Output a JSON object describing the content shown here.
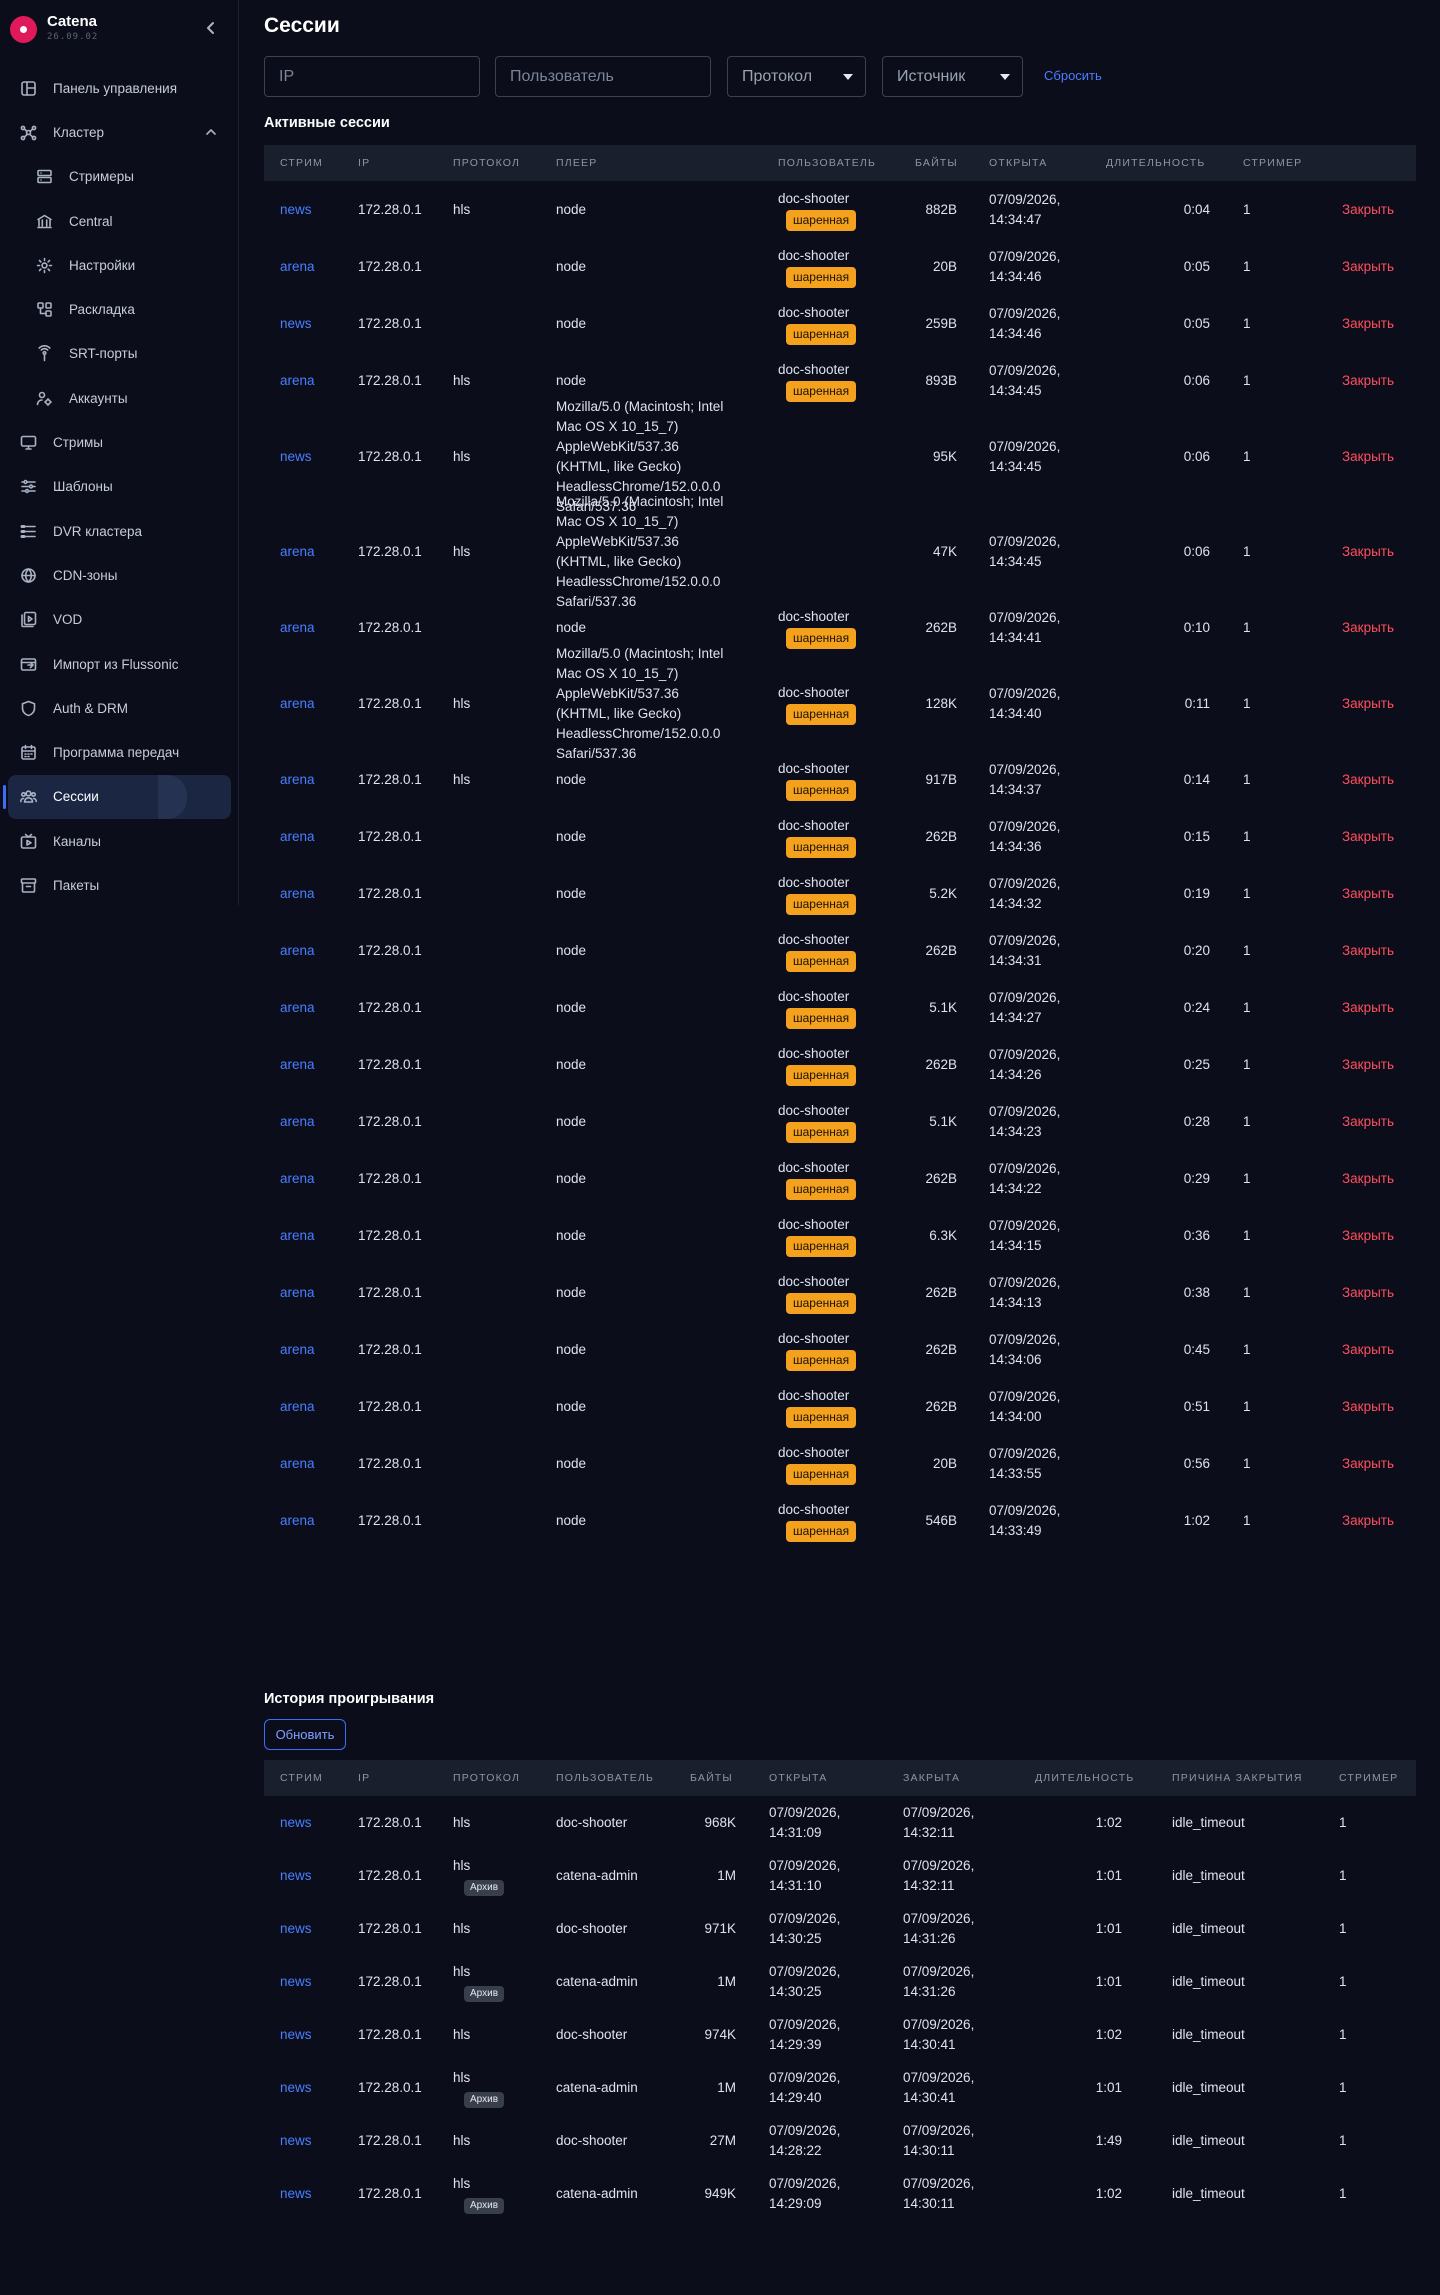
{
  "app": {
    "name": "Catena",
    "version": "26.09.02"
  },
  "sidebar": {
    "items": [
      {
        "label": "Панель управления",
        "icon": "dashboard-icon",
        "sub": false
      },
      {
        "label": "Кластер",
        "icon": "cluster-icon",
        "sub": false,
        "expanded": true
      },
      {
        "label": "Стримеры",
        "icon": "server-icon",
        "sub": true
      },
      {
        "label": "Central",
        "icon": "bank-icon",
        "sub": true
      },
      {
        "label": "Настройки",
        "icon": "gear-icon",
        "sub": true
      },
      {
        "label": "Раскладка",
        "icon": "layout-icon",
        "sub": true
      },
      {
        "label": "SRT-порты",
        "icon": "broadcast-icon",
        "sub": true
      },
      {
        "label": "Аккаунты",
        "icon": "accounts-icon",
        "sub": true
      },
      {
        "label": "Стримы",
        "icon": "monitor-icon",
        "sub": false
      },
      {
        "label": "Шаблоны",
        "icon": "sliders-icon",
        "sub": false
      },
      {
        "label": "DVR кластера",
        "icon": "list-icon",
        "sub": false
      },
      {
        "label": "CDN-зоны",
        "icon": "globe-icon",
        "sub": false
      },
      {
        "label": "VOD",
        "icon": "video-file-icon",
        "sub": false
      },
      {
        "label": "Импорт из Flussonic",
        "icon": "import-icon",
        "sub": false
      },
      {
        "label": "Auth & DRM",
        "icon": "shield-icon",
        "sub": false
      },
      {
        "label": "Программа передач",
        "icon": "calendar-icon",
        "sub": false
      },
      {
        "label": "Сессии",
        "icon": "users-icon",
        "sub": false,
        "active": true
      },
      {
        "label": "Каналы",
        "icon": "tv-icon",
        "sub": false
      },
      {
        "label": "Пакеты",
        "icon": "archive-box-icon",
        "sub": false
      }
    ]
  },
  "page": {
    "title": "Сессии"
  },
  "filters": {
    "ip_placeholder": "IP",
    "user_placeholder": "Пользователь",
    "protocol_label": "Протокол",
    "source_label": "Источник",
    "reset_label": "Сбросить"
  },
  "active": {
    "title": "Активные сессии",
    "columns": [
      "Стрим",
      "IP",
      "Протокол",
      "Плеер",
      "Пользователь",
      "Байты",
      "Открыта",
      "Длительность",
      "Стример",
      ""
    ],
    "close_label": "Закрыть",
    "shared_label": "шаренная",
    "rows": [
      {
        "stream": "news",
        "ip": "172.28.0.1",
        "proto": "hls",
        "player": [
          "node"
        ],
        "user": "doc-shooter",
        "shared": true,
        "bytes": "882B",
        "opened": [
          "07/09/2026,",
          "14:34:47"
        ],
        "duration": "0:04",
        "streamer": "1"
      },
      {
        "stream": "arena",
        "ip": "172.28.0.1",
        "proto": "",
        "player": [
          "node"
        ],
        "user": "doc-shooter",
        "shared": true,
        "bytes": "20B",
        "opened": [
          "07/09/2026,",
          "14:34:46"
        ],
        "duration": "0:05",
        "streamer": "1"
      },
      {
        "stream": "news",
        "ip": "172.28.0.1",
        "proto": "",
        "player": [
          "node"
        ],
        "user": "doc-shooter",
        "shared": true,
        "bytes": "259B",
        "opened": [
          "07/09/2026,",
          "14:34:46"
        ],
        "duration": "0:05",
        "streamer": "1"
      },
      {
        "stream": "arena",
        "ip": "172.28.0.1",
        "proto": "hls",
        "player": [
          "node"
        ],
        "user": "doc-shooter",
        "shared": true,
        "bytes": "893B",
        "opened": [
          "07/09/2026,",
          "14:34:45"
        ],
        "duration": "0:06",
        "streamer": "1"
      },
      {
        "stream": "news",
        "ip": "172.28.0.1",
        "proto": "hls",
        "player": [
          "Mozilla/5.0 (Macintosh; Intel",
          "Mac OS X 10_15_7)",
          "AppleWebKit/537.36",
          "(KHTML, like Gecko)",
          "HeadlessChrome/152.0.0.0",
          "Safari/537.36"
        ],
        "user": "",
        "shared": false,
        "bytes": "95K",
        "opened": [
          "07/09/2026,",
          "14:34:45"
        ],
        "duration": "0:06",
        "streamer": "1"
      },
      {
        "stream": "arena",
        "ip": "172.28.0.1",
        "proto": "hls",
        "player": [
          "Mozilla/5.0 (Macintosh; Intel",
          "Mac OS X 10_15_7)",
          "AppleWebKit/537.36",
          "(KHTML, like Gecko)",
          "HeadlessChrome/152.0.0.0",
          "Safari/537.36"
        ],
        "user": "",
        "shared": false,
        "bytes": "47K",
        "opened": [
          "07/09/2026,",
          "14:34:45"
        ],
        "duration": "0:06",
        "streamer": "1"
      },
      {
        "stream": "arena",
        "ip": "172.28.0.1",
        "proto": "",
        "player": [
          "node"
        ],
        "user": "doc-shooter",
        "shared": true,
        "bytes": "262B",
        "opened": [
          "07/09/2026,",
          "14:34:41"
        ],
        "duration": "0:10",
        "streamer": "1"
      },
      {
        "stream": "arena",
        "ip": "172.28.0.1",
        "proto": "hls",
        "player": [
          "Mozilla/5.0 (Macintosh; Intel",
          "Mac OS X 10_15_7)",
          "AppleWebKit/537.36",
          "(KHTML, like Gecko)",
          "HeadlessChrome/152.0.0.0",
          "Safari/537.36"
        ],
        "user": "doc-shooter",
        "shared": true,
        "bytes": "128K",
        "opened": [
          "07/09/2026,",
          "14:34:40"
        ],
        "duration": "0:11",
        "streamer": "1"
      },
      {
        "stream": "arena",
        "ip": "172.28.0.1",
        "proto": "hls",
        "player": [
          "node"
        ],
        "user": "doc-shooter",
        "shared": true,
        "bytes": "917B",
        "opened": [
          "07/09/2026,",
          "14:34:37"
        ],
        "duration": "0:14",
        "streamer": "1"
      },
      {
        "stream": "arena",
        "ip": "172.28.0.1",
        "proto": "",
        "player": [
          "node"
        ],
        "user": "doc-shooter",
        "shared": true,
        "bytes": "262B",
        "opened": [
          "07/09/2026,",
          "14:34:36"
        ],
        "duration": "0:15",
        "streamer": "1"
      },
      {
        "stream": "arena",
        "ip": "172.28.0.1",
        "proto": "",
        "player": [
          "node"
        ],
        "user": "doc-shooter",
        "shared": true,
        "bytes": "5.2K",
        "opened": [
          "07/09/2026,",
          "14:34:32"
        ],
        "duration": "0:19",
        "streamer": "1"
      },
      {
        "stream": "arena",
        "ip": "172.28.0.1",
        "proto": "",
        "player": [
          "node"
        ],
        "user": "doc-shooter",
        "shared": true,
        "bytes": "262B",
        "opened": [
          "07/09/2026,",
          "14:34:31"
        ],
        "duration": "0:20",
        "streamer": "1"
      },
      {
        "stream": "arena",
        "ip": "172.28.0.1",
        "proto": "",
        "player": [
          "node"
        ],
        "user": "doc-shooter",
        "shared": true,
        "bytes": "5.1K",
        "opened": [
          "07/09/2026,",
          "14:34:27"
        ],
        "duration": "0:24",
        "streamer": "1"
      },
      {
        "stream": "arena",
        "ip": "172.28.0.1",
        "proto": "",
        "player": [
          "node"
        ],
        "user": "doc-shooter",
        "shared": true,
        "bytes": "262B",
        "opened": [
          "07/09/2026,",
          "14:34:26"
        ],
        "duration": "0:25",
        "streamer": "1"
      },
      {
        "stream": "arena",
        "ip": "172.28.0.1",
        "proto": "",
        "player": [
          "node"
        ],
        "user": "doc-shooter",
        "shared": true,
        "bytes": "5.1K",
        "opened": [
          "07/09/2026,",
          "14:34:23"
        ],
        "duration": "0:28",
        "streamer": "1"
      },
      {
        "stream": "arena",
        "ip": "172.28.0.1",
        "proto": "",
        "player": [
          "node"
        ],
        "user": "doc-shooter",
        "shared": true,
        "bytes": "262B",
        "opened": [
          "07/09/2026,",
          "14:34:22"
        ],
        "duration": "0:29",
        "streamer": "1"
      },
      {
        "stream": "arena",
        "ip": "172.28.0.1",
        "proto": "",
        "player": [
          "node"
        ],
        "user": "doc-shooter",
        "shared": true,
        "bytes": "6.3K",
        "opened": [
          "07/09/2026,",
          "14:34:15"
        ],
        "duration": "0:36",
        "streamer": "1"
      },
      {
        "stream": "arena",
        "ip": "172.28.0.1",
        "proto": "",
        "player": [
          "node"
        ],
        "user": "doc-shooter",
        "shared": true,
        "bytes": "262B",
        "opened": [
          "07/09/2026,",
          "14:34:13"
        ],
        "duration": "0:38",
        "streamer": "1"
      },
      {
        "stream": "arena",
        "ip": "172.28.0.1",
        "proto": "",
        "player": [
          "node"
        ],
        "user": "doc-shooter",
        "shared": true,
        "bytes": "262B",
        "opened": [
          "07/09/2026,",
          "14:34:06"
        ],
        "duration": "0:45",
        "streamer": "1"
      },
      {
        "stream": "arena",
        "ip": "172.28.0.1",
        "proto": "",
        "player": [
          "node"
        ],
        "user": "doc-shooter",
        "shared": true,
        "bytes": "262B",
        "opened": [
          "07/09/2026,",
          "14:34:00"
        ],
        "duration": "0:51",
        "streamer": "1"
      },
      {
        "stream": "arena",
        "ip": "172.28.0.1",
        "proto": "",
        "player": [
          "node"
        ],
        "user": "doc-shooter",
        "shared": true,
        "bytes": "20B",
        "opened": [
          "07/09/2026,",
          "14:33:55"
        ],
        "duration": "0:56",
        "streamer": "1"
      },
      {
        "stream": "arena",
        "ip": "172.28.0.1",
        "proto": "",
        "player": [
          "node"
        ],
        "user": "doc-shooter",
        "shared": true,
        "bytes": "546B",
        "opened": [
          "07/09/2026,",
          "14:33:49"
        ],
        "duration": "1:02",
        "streamer": "1"
      }
    ]
  },
  "history": {
    "title": "История проигрывания",
    "refresh_label": "Обновить",
    "archive_label": "Архив",
    "columns": [
      "Стрим",
      "IP",
      "Протокол",
      "Пользователь",
      "Байты",
      "Открыта",
      "Закрыта",
      "Длительность",
      "Причина закрытия",
      "Стример"
    ],
    "rows": [
      {
        "stream": "news",
        "ip": "172.28.0.1",
        "proto": "hls",
        "archive": false,
        "user": "doc-shooter",
        "bytes": "968K",
        "opened": [
          "07/09/2026,",
          "14:31:09"
        ],
        "closed": [
          "07/09/2026,",
          "14:32:11"
        ],
        "duration": "1:02",
        "reason": "idle_timeout",
        "streamer": "1"
      },
      {
        "stream": "news",
        "ip": "172.28.0.1",
        "proto": "hls",
        "archive": true,
        "user": "catena-admin",
        "bytes": "1M",
        "opened": [
          "07/09/2026,",
          "14:31:10"
        ],
        "closed": [
          "07/09/2026,",
          "14:32:11"
        ],
        "duration": "1:01",
        "reason": "idle_timeout",
        "streamer": "1"
      },
      {
        "stream": "news",
        "ip": "172.28.0.1",
        "proto": "hls",
        "archive": false,
        "user": "doc-shooter",
        "bytes": "971K",
        "opened": [
          "07/09/2026,",
          "14:30:25"
        ],
        "closed": [
          "07/09/2026,",
          "14:31:26"
        ],
        "duration": "1:01",
        "reason": "idle_timeout",
        "streamer": "1"
      },
      {
        "stream": "news",
        "ip": "172.28.0.1",
        "proto": "hls",
        "archive": true,
        "user": "catena-admin",
        "bytes": "1M",
        "opened": [
          "07/09/2026,",
          "14:30:25"
        ],
        "closed": [
          "07/09/2026,",
          "14:31:26"
        ],
        "duration": "1:01",
        "reason": "idle_timeout",
        "streamer": "1"
      },
      {
        "stream": "news",
        "ip": "172.28.0.1",
        "proto": "hls",
        "archive": false,
        "user": "doc-shooter",
        "bytes": "974K",
        "opened": [
          "07/09/2026,",
          "14:29:39"
        ],
        "closed": [
          "07/09/2026,",
          "14:30:41"
        ],
        "duration": "1:02",
        "reason": "idle_timeout",
        "streamer": "1"
      },
      {
        "stream": "news",
        "ip": "172.28.0.1",
        "proto": "hls",
        "archive": true,
        "user": "catena-admin",
        "bytes": "1M",
        "opened": [
          "07/09/2026,",
          "14:29:40"
        ],
        "closed": [
          "07/09/2026,",
          "14:30:41"
        ],
        "duration": "1:01",
        "reason": "idle_timeout",
        "streamer": "1"
      },
      {
        "stream": "news",
        "ip": "172.28.0.1",
        "proto": "hls",
        "archive": false,
        "user": "doc-shooter",
        "bytes": "27M",
        "opened": [
          "07/09/2026,",
          "14:28:22"
        ],
        "closed": [
          "07/09/2026,",
          "14:30:11"
        ],
        "duration": "1:49",
        "reason": "idle_timeout",
        "streamer": "1"
      },
      {
        "stream": "news",
        "ip": "172.28.0.1",
        "proto": "hls",
        "archive": true,
        "user": "catena-admin",
        "bytes": "949K",
        "opened": [
          "07/09/2026,",
          "14:29:09"
        ],
        "closed": [
          "07/09/2026,",
          "14:30:11"
        ],
        "duration": "1:02",
        "reason": "idle_timeout",
        "streamer": "1"
      }
    ]
  }
}
